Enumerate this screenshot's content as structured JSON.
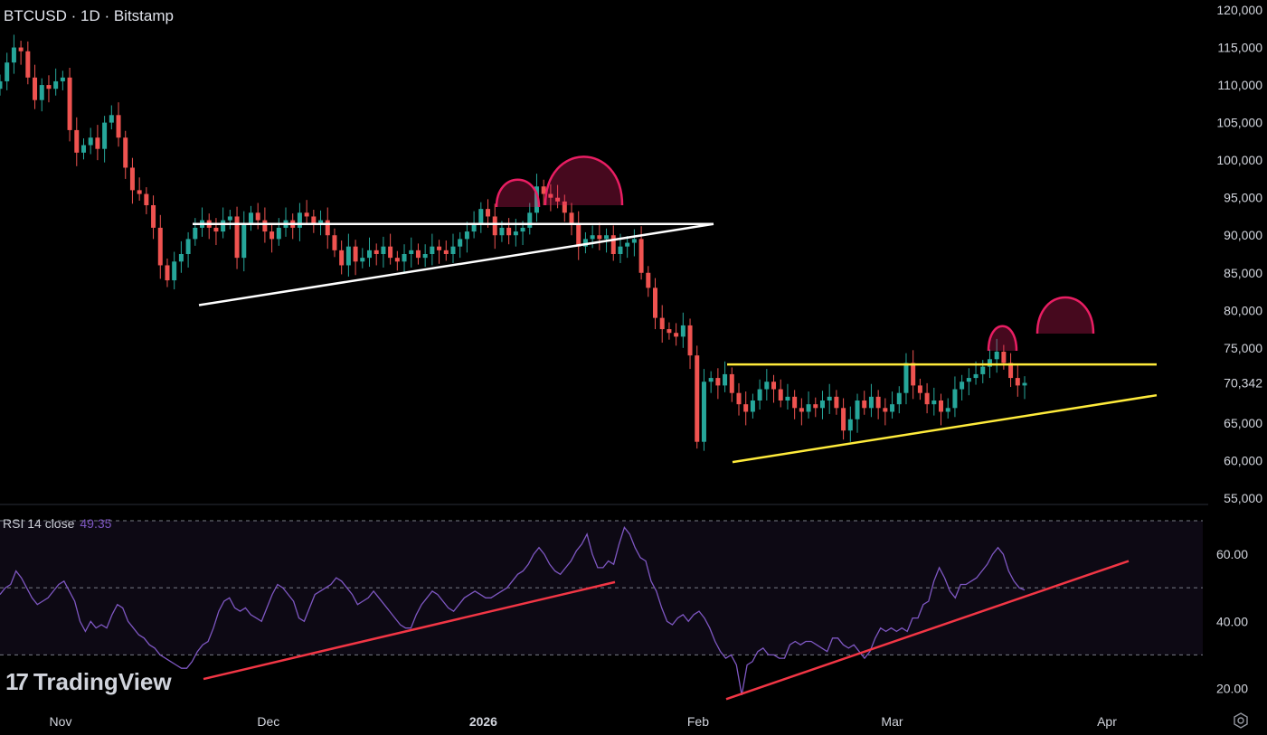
{
  "header": {
    "symbol_line": "BTCUSD · 1D · Bitstamp"
  },
  "rsi": {
    "label": "RSI 14 close",
    "value": "49.35"
  },
  "branding": {
    "logo_text": "TradingView",
    "logo_mark": "17"
  },
  "icons": {
    "settings": "settings-icon"
  },
  "chart_data": [
    {
      "type": "candlestick",
      "title": "BTCUSD · 1D · Bitstamp",
      "ylim": [
        55000,
        120000
      ],
      "y_ticks": [
        "120,000",
        "115,000",
        "110,000",
        "105,000",
        "100,000",
        "95,000",
        "90,000",
        "85,000",
        "80,000",
        "75,000",
        "70,342",
        "65,000",
        "60,000",
        "55,000"
      ],
      "x_ticks": [
        "Nov",
        "Dec",
        "2026",
        "Feb",
        "Mar",
        "Apr"
      ],
      "x_tick_dates": [
        "2025-11-01",
        "2025-12-01",
        "2026-01-01",
        "2026-02-01",
        "2026-03-01",
        "2026-04-01"
      ],
      "last_price": 70342,
      "colors": {
        "up": "#26a69a",
        "down": "#ef5350",
        "triangle_1": "#ffffff",
        "triangle_2": "#ffeb3b",
        "head_shoulders": "#e91e63"
      },
      "candles_close": [
        110500,
        113000,
        115000,
        114500,
        111000,
        108000,
        110000,
        109500,
        110500,
        111000,
        104000,
        101000,
        102000,
        103000,
        101500,
        105000,
        106000,
        103000,
        99000,
        96000,
        95500,
        94000,
        91000,
        86000,
        84000,
        86500,
        87500,
        89500,
        91000,
        92000,
        91000,
        90500,
        92000,
        92500,
        87000,
        91500,
        93000,
        92000,
        90500,
        89500,
        91000,
        92000,
        91000,
        93000,
        92500,
        91500,
        92000,
        90000,
        88000,
        86000,
        88500,
        86500,
        87000,
        88000,
        87500,
        88500,
        87000,
        86500,
        87500,
        88000,
        87000,
        87500,
        88500,
        88000,
        87500,
        88500,
        89500,
        90500,
        91500,
        93500,
        92500,
        90000,
        91000,
        90000,
        90500,
        91000,
        93000,
        96500,
        95500,
        95000,
        94500,
        93000,
        91500,
        88500,
        89500,
        90000,
        89500,
        90000,
        87500,
        88500,
        89000,
        89500,
        85000,
        83000,
        79000,
        77500,
        77000,
        76500,
        78000,
        74000,
        62500,
        70500,
        71000,
        70000,
        71500,
        69000,
        67500,
        66500,
        68000,
        69500,
        70500,
        69500,
        68000,
        68500,
        67000,
        66500,
        67500,
        67000,
        68000,
        68500,
        67000,
        64000,
        65500,
        68000,
        67000,
        68500,
        67000,
        66500,
        67500,
        69000,
        73000,
        70000,
        69000,
        67500,
        68000,
        66500,
        67000,
        69500,
        70500,
        71000,
        71500,
        72500,
        73500,
        74500,
        73000,
        71000,
        70000,
        70342
      ],
      "patterns": {
        "triangle_1": {
          "upper": 91500,
          "lower_start": 80700,
          "apex": 91500
        },
        "triangle_2": {
          "upper": 72800,
          "lower_start": 59800,
          "lower_end": 68700
        },
        "arcs_top": [
          "left-shoulder",
          "head",
          "left-shoulder",
          "projected-head"
        ]
      }
    },
    {
      "type": "line",
      "title": "RSI 14 close",
      "ylim": [
        15,
        70
      ],
      "y_ticks": [
        "60.00",
        "40.00",
        "20.00"
      ],
      "bands": [
        70,
        50,
        30
      ],
      "current": 49.35,
      "series": [
        {
          "values": [
            48,
            50,
            51,
            55,
            53,
            50,
            47,
            45,
            46,
            47,
            49,
            51,
            52,
            49,
            46,
            40,
            37,
            40,
            38,
            39,
            38,
            42,
            45,
            44,
            40,
            38,
            36,
            35,
            33,
            32,
            30,
            29,
            28,
            27,
            26,
            26,
            28,
            31,
            33,
            34,
            38,
            43,
            46,
            47,
            44,
            43,
            44,
            42,
            41,
            40,
            44,
            48,
            51,
            50,
            48,
            46,
            41,
            40,
            44,
            48,
            49,
            50,
            51,
            53,
            52,
            50,
            48,
            45,
            46,
            47,
            49,
            47,
            45,
            43,
            41,
            39,
            38,
            38,
            42,
            45,
            47,
            49,
            48,
            46,
            44,
            43,
            45,
            47,
            48,
            49,
            48,
            47,
            47,
            48,
            49,
            50,
            52,
            54,
            55,
            57,
            60,
            62,
            60,
            57,
            55,
            54,
            56,
            58,
            61,
            63,
            66,
            60,
            56,
            56,
            58,
            57,
            63,
            68,
            66,
            62,
            59,
            58,
            52,
            49,
            44,
            40,
            39,
            41,
            42,
            40,
            42,
            43,
            41,
            38,
            34,
            31,
            29,
            30,
            27,
            18,
            27,
            28,
            31,
            32,
            30,
            30,
            29,
            29,
            33,
            34,
            33,
            34,
            34,
            33,
            32,
            31,
            35,
            35,
            33,
            32,
            33,
            31,
            29,
            31,
            35,
            38,
            37,
            38,
            37,
            38,
            37,
            41,
            41,
            45,
            46,
            52,
            56,
            53,
            49,
            47,
            51,
            51,
            52,
            53,
            55,
            57,
            60,
            62,
            60,
            55,
            52,
            50,
            49.35
          ]
        }
      ],
      "trendlines": [
        {
          "from": [
            225,
            22.8
          ],
          "to": [
            680,
            51.7
          ]
        },
        {
          "from": [
            803,
            16.8
          ],
          "to": [
            1248,
            58
          ]
        }
      ]
    }
  ]
}
